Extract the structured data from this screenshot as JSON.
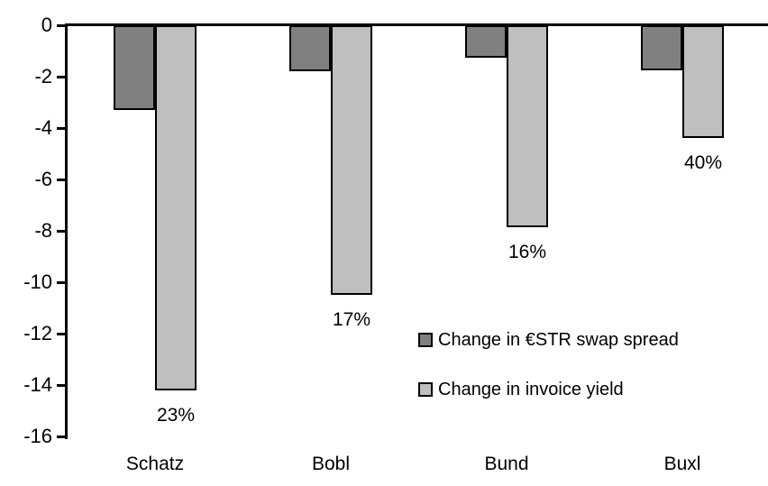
{
  "chart_data": {
    "type": "bar",
    "orientation": "vertical",
    "title": "",
    "xlabel": "",
    "ylabel": "",
    "categories": [
      "Schatz",
      "Bobl",
      "Bund",
      "Buxl"
    ],
    "series": [
      {
        "name": "Change in €STR swap spread",
        "color": "#808080",
        "values": [
          -3.3,
          -1.8,
          -1.25,
          -1.75
        ]
      },
      {
        "name": "Change in invoice yield",
        "color": "#bfbfbf",
        "values": [
          -14.2,
          -10.5,
          -7.85,
          -4.4
        ]
      }
    ],
    "bar_labels": {
      "attached_to_series": "Change in invoice yield",
      "values": [
        "23%",
        "17%",
        "16%",
        "40%"
      ]
    },
    "ylim": [
      -16,
      0
    ],
    "yticks": [
      0,
      -2,
      -4,
      -6,
      -8,
      -10,
      -12,
      -14,
      -16
    ],
    "grid": false,
    "legend_position": "inside-right",
    "colors": {
      "axis": "#000000",
      "text": "#000000",
      "background": "#ffffff",
      "bar_border": "#000000"
    }
  }
}
